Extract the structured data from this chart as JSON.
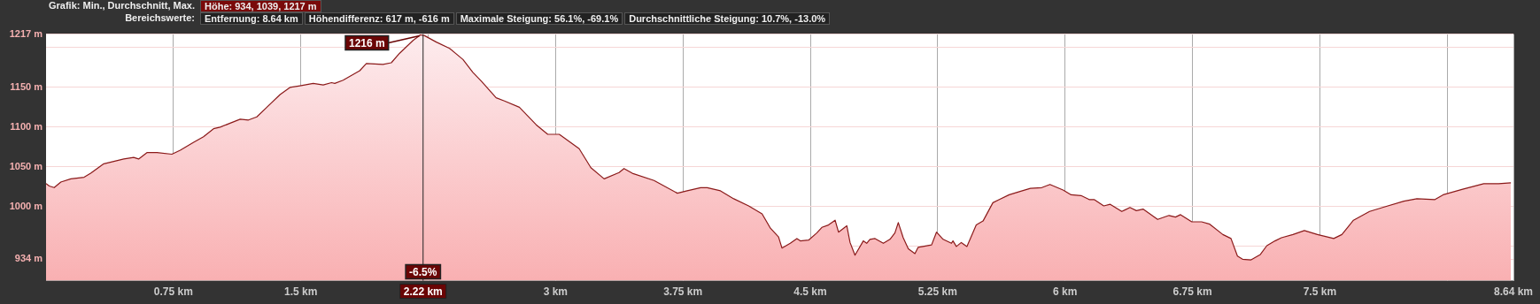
{
  "chart_data": {
    "type": "area",
    "color": "#8b1a1a",
    "x": [
      0,
      0.019,
      0.048,
      0.087,
      0.146,
      0.224,
      0.263,
      0.34,
      0.458,
      0.516,
      0.545,
      0.594,
      0.653,
      0.741,
      0.79,
      0.869,
      0.927,
      0.986,
      1.025,
      1.084,
      1.143,
      1.192,
      1.241,
      1.3,
      1.378,
      1.436,
      1.495,
      1.573,
      1.632,
      1.681,
      1.7,
      1.749,
      1.847,
      1.886,
      1.984,
      2.033,
      2.082,
      2.161,
      2.204,
      2.229,
      2.298,
      2.376,
      2.455,
      2.513,
      2.562,
      2.65,
      2.699,
      2.787,
      2.886,
      2.954,
      3.022,
      3.139,
      3.208,
      3.286,
      3.374,
      3.403,
      3.452,
      3.58,
      3.717,
      3.775,
      3.854,
      3.893,
      3.971,
      4.049,
      4.137,
      4.216,
      4.265,
      4.313,
      4.333,
      4.382,
      4.421,
      4.441,
      4.49,
      4.538,
      4.568,
      4.607,
      4.646,
      4.666,
      4.715,
      4.734,
      4.763,
      4.812,
      4.832,
      4.851,
      4.881,
      4.93,
      4.969,
      4.998,
      5.018,
      5.047,
      5.077,
      5.116,
      5.135,
      5.214,
      5.243,
      5.282,
      5.331,
      5.34,
      5.36,
      5.389,
      5.422,
      5.477,
      5.517,
      5.575,
      5.613,
      5.671,
      5.748,
      5.796,
      5.863,
      5.911,
      5.988,
      6.036,
      6.094,
      6.142,
      6.171,
      6.228,
      6.266,
      6.334,
      6.382,
      6.42,
      6.459,
      6.545,
      6.612,
      6.65,
      6.68,
      6.746,
      6.804,
      6.852,
      6.929,
      6.977,
      7.015,
      7.045,
      7.093,
      7.15,
      7.188,
      7.236,
      7.274,
      7.342,
      7.409,
      7.486,
      7.582,
      7.63,
      7.698,
      7.793,
      7.87,
      7.995,
      8.072,
      8.178,
      8.226,
      8.341,
      8.465,
      8.552,
      8.625
    ],
    "values": [
      1029,
      1026,
      1024,
      1031,
      1035,
      1037,
      1042,
      1054,
      1060,
      1062,
      1060,
      1068,
      1068,
      1066,
      1071,
      1081,
      1088,
      1098,
      1100,
      1105,
      1110,
      1109,
      1113,
      1125,
      1141,
      1150,
      1152,
      1155,
      1153,
      1156,
      1155,
      1159,
      1171,
      1180,
      1179,
      1181,
      1193,
      1209,
      1216,
      1215,
      1207,
      1199,
      1185,
      1169,
      1158,
      1137,
      1133,
      1125,
      1103,
      1091,
      1091,
      1073,
      1049,
      1035,
      1043,
      1048,
      1042,
      1033,
      1017,
      1020,
      1024,
      1024,
      1020,
      1010,
      1001,
      991,
      973,
      962,
      948,
      954,
      960,
      957,
      958,
      967,
      974,
      977,
      983,
      968,
      976,
      955,
      939,
      957,
      954,
      959,
      960,
      954,
      959,
      967,
      980,
      961,
      947,
      941,
      949,
      952,
      968,
      959,
      954,
      957,
      950,
      955,
      950,
      977,
      982,
      1005,
      1009,
      1015,
      1020,
      1023,
      1024,
      1028,
      1021,
      1015,
      1014,
      1009,
      1009,
      1001,
      1003,
      994,
      999,
      995,
      997,
      984,
      989,
      987,
      990,
      981,
      981,
      978,
      965,
      960,
      938,
      934,
      933,
      940,
      951,
      957,
      961,
      965,
      970,
      965,
      960,
      965,
      983,
      994,
      999,
      1007,
      1010,
      1009,
      1015,
      1022,
      1029,
      1029,
      1030
    ],
    "xlim": [
      0,
      8.64
    ],
    "xticks": [
      {
        "value": 0.75,
        "label": "0.75 km"
      },
      {
        "value": 1.5,
        "label": "1.5 km"
      },
      {
        "value": 2.25,
        "label": null
      },
      {
        "value": 3,
        "label": "3 km"
      },
      {
        "value": 3.75,
        "label": "3.75 km"
      },
      {
        "value": 4.5,
        "label": "4.5 km"
      },
      {
        "value": 5.25,
        "label": "5.25 km"
      },
      {
        "value": 6,
        "label": "6 km"
      },
      {
        "value": 6.75,
        "label": "6.75 km"
      },
      {
        "value": 7.5,
        "label": "7.5 km"
      },
      {
        "value": 8.25,
        "label": null
      },
      {
        "value": 8.64,
        "label": "8.64 km"
      }
    ],
    "ylim": [
      907,
      1217
    ],
    "yticks": [
      {
        "value": 934,
        "label": "934 m"
      },
      {
        "value": 950,
        "label": null
      },
      {
        "value": 1000,
        "label": "1000 m"
      },
      {
        "value": 1050,
        "label": "1050 m"
      },
      {
        "value": 1100,
        "label": "1100 m"
      },
      {
        "value": 1150,
        "label": "1150 m"
      },
      {
        "value": 1200,
        "label": null
      },
      {
        "value": 1217,
        "label": "1217 m"
      }
    ],
    "grid": true,
    "ref_lines": [
      {
        "axis": "x",
        "value": 2.22,
        "label": "2.22 km"
      }
    ],
    "annotations": [
      "Grafik: Min., Durchschnitt, Max.",
      "Höhe: 934, 1039, 1217 m",
      "Bereichswerte:",
      "Entfernung: 8.64 km",
      "Höhendifferenz: 617 m, -616 m",
      "Maximale Steigung: 56.1%, -69.1%",
      "Durchschnittliche Steigung: 10.7%, -13.0%",
      {
        "text": "1216 m",
        "x": 2.204,
        "y": 1216
      },
      {
        "text": "-6.5%",
        "x": 2.22
      }
    ]
  }
}
